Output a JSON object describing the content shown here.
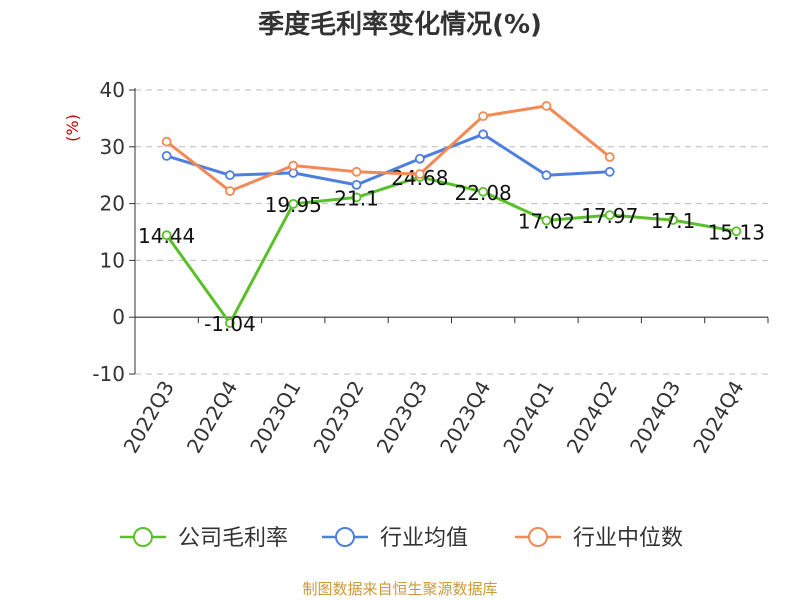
{
  "chart_data": {
    "type": "line",
    "title": "季度毛利率变化情况(%)",
    "ylabel": "(%)",
    "xlabel": "",
    "categories": [
      "2022Q3",
      "2022Q4",
      "2023Q1",
      "2023Q2",
      "2023Q3",
      "2023Q4",
      "2024Q1",
      "2024Q2",
      "2024Q3",
      "2024Q4"
    ],
    "yticks": [
      "-10",
      "0",
      "10",
      "20",
      "30",
      "40"
    ],
    "ylim": [
      -10,
      40
    ],
    "grid": true,
    "legend_position": "bottom",
    "series": [
      {
        "name": "公司毛利率",
        "color": "#5ac02a",
        "labeled": true,
        "values": [
          14.44,
          -1.04,
          19.95,
          21.1,
          24.68,
          22.08,
          17.02,
          17.97,
          17.1,
          15.13
        ],
        "labels": [
          "14.44",
          "-1.04",
          "19.95",
          "21.1",
          "24.68",
          "22.08",
          "17.02",
          "17.97",
          "17.1",
          "15.13"
        ]
      },
      {
        "name": "行业均值",
        "color": "#4f7fdc",
        "labeled": false,
        "values": [
          28.4,
          25.0,
          25.4,
          23.3,
          27.9,
          32.2,
          25.0,
          25.6,
          null,
          null
        ]
      },
      {
        "name": "行业中位数",
        "color": "#f28a55",
        "labeled": false,
        "values": [
          30.9,
          22.2,
          26.7,
          25.6,
          25.2,
          35.4,
          37.2,
          28.2,
          null,
          null
        ]
      }
    ]
  },
  "source_note": "制图数据来自恒生聚源数据库"
}
